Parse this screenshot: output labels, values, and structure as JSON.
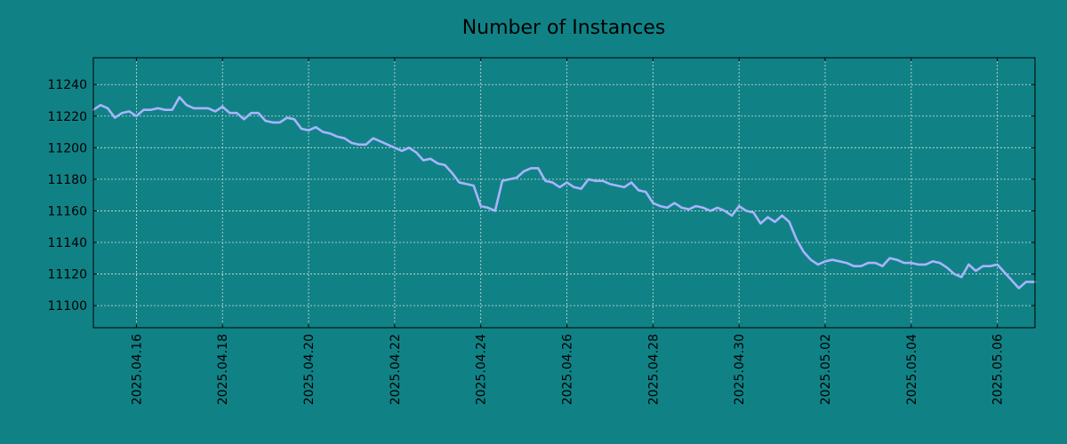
{
  "chart_data": {
    "type": "line",
    "title": "Number of Instances",
    "xlabel": "",
    "ylabel": "",
    "x_tick_labels": [
      "2025.04.16",
      "2025.04.18",
      "2025.04.20",
      "2025.04.22",
      "2025.04.24",
      "2025.04.26",
      "2025.04.28",
      "2025.04.30",
      "2025.05.02",
      "2025.05.04",
      "2025.05.06"
    ],
    "y_ticks": [
      11100,
      11120,
      11140,
      11160,
      11180,
      11200,
      11220,
      11240
    ],
    "xlim": [
      "2025-04-15T00:00",
      "2025-05-06T21:00"
    ],
    "ylim": [
      11086,
      11257
    ],
    "grid": true,
    "series": [
      {
        "color": "#a8b4ff",
        "points": [
          [
            "2025-04-15T00:00",
            11224
          ],
          [
            "2025-04-15T04:00",
            11227
          ],
          [
            "2025-04-15T08:00",
            11225
          ],
          [
            "2025-04-15T12:00",
            11219
          ],
          [
            "2025-04-15T16:00",
            11222
          ],
          [
            "2025-04-15T20:00",
            11223
          ],
          [
            "2025-04-16T00:00",
            11220
          ],
          [
            "2025-04-16T04:00",
            11224
          ],
          [
            "2025-04-16T08:00",
            11224
          ],
          [
            "2025-04-16T12:00",
            11225
          ],
          [
            "2025-04-16T16:00",
            11224
          ],
          [
            "2025-04-16T20:00",
            11224
          ],
          [
            "2025-04-17T00:00",
            11232
          ],
          [
            "2025-04-17T04:00",
            11227
          ],
          [
            "2025-04-17T08:00",
            11225
          ],
          [
            "2025-04-17T12:00",
            11225
          ],
          [
            "2025-04-17T16:00",
            11225
          ],
          [
            "2025-04-17T20:00",
            11223
          ],
          [
            "2025-04-18T00:00",
            11226
          ],
          [
            "2025-04-18T04:00",
            11222
          ],
          [
            "2025-04-18T08:00",
            11222
          ],
          [
            "2025-04-18T12:00",
            11218
          ],
          [
            "2025-04-18T16:00",
            11222
          ],
          [
            "2025-04-18T20:00",
            11222
          ],
          [
            "2025-04-19T00:00",
            11217
          ],
          [
            "2025-04-19T04:00",
            11216
          ],
          [
            "2025-04-19T08:00",
            11216
          ],
          [
            "2025-04-19T12:00",
            11219
          ],
          [
            "2025-04-19T16:00",
            11218
          ],
          [
            "2025-04-19T20:00",
            11212
          ],
          [
            "2025-04-20T00:00",
            11211
          ],
          [
            "2025-04-20T04:00",
            11213
          ],
          [
            "2025-04-20T08:00",
            11210
          ],
          [
            "2025-04-20T12:00",
            11209
          ],
          [
            "2025-04-20T16:00",
            11207
          ],
          [
            "2025-04-20T20:00",
            11206
          ],
          [
            "2025-04-21T00:00",
            11203
          ],
          [
            "2025-04-21T04:00",
            11202
          ],
          [
            "2025-04-21T08:00",
            11202
          ],
          [
            "2025-04-21T12:00",
            11206
          ],
          [
            "2025-04-21T16:00",
            11204
          ],
          [
            "2025-04-21T20:00",
            11202
          ],
          [
            "2025-04-22T00:00",
            11200
          ],
          [
            "2025-04-22T04:00",
            11198
          ],
          [
            "2025-04-22T08:00",
            11200
          ],
          [
            "2025-04-22T12:00",
            11197
          ],
          [
            "2025-04-22T16:00",
            11192
          ],
          [
            "2025-04-22T20:00",
            11193
          ],
          [
            "2025-04-23T00:00",
            11190
          ],
          [
            "2025-04-23T04:00",
            11189
          ],
          [
            "2025-04-23T08:00",
            11184
          ],
          [
            "2025-04-23T12:00",
            11178
          ],
          [
            "2025-04-23T16:00",
            11177
          ],
          [
            "2025-04-23T20:00",
            11176
          ],
          [
            "2025-04-24T00:00",
            11163
          ],
          [
            "2025-04-24T04:00",
            11162
          ],
          [
            "2025-04-24T08:00",
            11160
          ],
          [
            "2025-04-24T12:00",
            11179
          ],
          [
            "2025-04-24T16:00",
            11180
          ],
          [
            "2025-04-24T20:00",
            11181
          ],
          [
            "2025-04-25T00:00",
            11185
          ],
          [
            "2025-04-25T04:00",
            11187
          ],
          [
            "2025-04-25T08:00",
            11187
          ],
          [
            "2025-04-25T12:00",
            11179
          ],
          [
            "2025-04-25T16:00",
            11178
          ],
          [
            "2025-04-25T20:00",
            11175
          ],
          [
            "2025-04-26T00:00",
            11178
          ],
          [
            "2025-04-26T04:00",
            11175
          ],
          [
            "2025-04-26T08:00",
            11174
          ],
          [
            "2025-04-26T12:00",
            11180
          ],
          [
            "2025-04-26T16:00",
            11179
          ],
          [
            "2025-04-26T20:00",
            11179
          ],
          [
            "2025-04-27T00:00",
            11177
          ],
          [
            "2025-04-27T04:00",
            11176
          ],
          [
            "2025-04-27T08:00",
            11175
          ],
          [
            "2025-04-27T12:00",
            11178
          ],
          [
            "2025-04-27T16:00",
            11173
          ],
          [
            "2025-04-27T20:00",
            11172
          ],
          [
            "2025-04-28T00:00",
            11165
          ],
          [
            "2025-04-28T04:00",
            11163
          ],
          [
            "2025-04-28T08:00",
            11162
          ],
          [
            "2025-04-28T12:00",
            11165
          ],
          [
            "2025-04-28T16:00",
            11162
          ],
          [
            "2025-04-28T20:00",
            11161
          ],
          [
            "2025-04-29T00:00",
            11163
          ],
          [
            "2025-04-29T04:00",
            11162
          ],
          [
            "2025-04-29T08:00",
            11160
          ],
          [
            "2025-04-29T12:00",
            11162
          ],
          [
            "2025-04-29T16:00",
            11160
          ],
          [
            "2025-04-29T20:00",
            11157
          ],
          [
            "2025-04-30T00:00",
            11163
          ],
          [
            "2025-04-30T04:00",
            11160
          ],
          [
            "2025-04-30T08:00",
            11159
          ],
          [
            "2025-04-30T12:00",
            11152
          ],
          [
            "2025-04-30T16:00",
            11156
          ],
          [
            "2025-04-30T20:00",
            11153
          ],
          [
            "2025-05-01T00:00",
            11157
          ],
          [
            "2025-05-01T04:00",
            11153
          ],
          [
            "2025-05-01T08:00",
            11142
          ],
          [
            "2025-05-01T12:00",
            11134
          ],
          [
            "2025-05-01T16:00",
            11129
          ],
          [
            "2025-05-01T20:00",
            11126
          ],
          [
            "2025-05-02T00:00",
            11128
          ],
          [
            "2025-05-02T04:00",
            11129
          ],
          [
            "2025-05-02T08:00",
            11128
          ],
          [
            "2025-05-02T12:00",
            11127
          ],
          [
            "2025-05-02T16:00",
            11125
          ],
          [
            "2025-05-02T20:00",
            11125
          ],
          [
            "2025-05-03T00:00",
            11127
          ],
          [
            "2025-05-03T04:00",
            11127
          ],
          [
            "2025-05-03T08:00",
            11125
          ],
          [
            "2025-05-03T12:00",
            11130
          ],
          [
            "2025-05-03T16:00",
            11129
          ],
          [
            "2025-05-03T20:00",
            11127
          ],
          [
            "2025-05-04T00:00",
            11127
          ],
          [
            "2025-05-04T04:00",
            11126
          ],
          [
            "2025-05-04T08:00",
            11126
          ],
          [
            "2025-05-04T12:00",
            11128
          ],
          [
            "2025-05-04T16:00",
            11127
          ],
          [
            "2025-05-04T20:00",
            11124
          ],
          [
            "2025-05-05T00:00",
            11120
          ],
          [
            "2025-05-05T04:00",
            11118
          ],
          [
            "2025-05-05T08:00",
            11126
          ],
          [
            "2025-05-05T12:00",
            11122
          ],
          [
            "2025-05-05T16:00",
            11125
          ],
          [
            "2025-05-05T20:00",
            11125
          ],
          [
            "2025-05-06T00:00",
            11126
          ],
          [
            "2025-05-06T04:00",
            11121
          ],
          [
            "2025-05-06T08:00",
            11116
          ],
          [
            "2025-05-06T12:00",
            11111
          ],
          [
            "2025-05-06T16:00",
            11115
          ],
          [
            "2025-05-06T21:00",
            11115
          ]
        ]
      }
    ]
  },
  "colors": {
    "background": "#108286",
    "line": "#a8b4ff",
    "grid": "#d8dcd8",
    "axis": "#000000"
  }
}
